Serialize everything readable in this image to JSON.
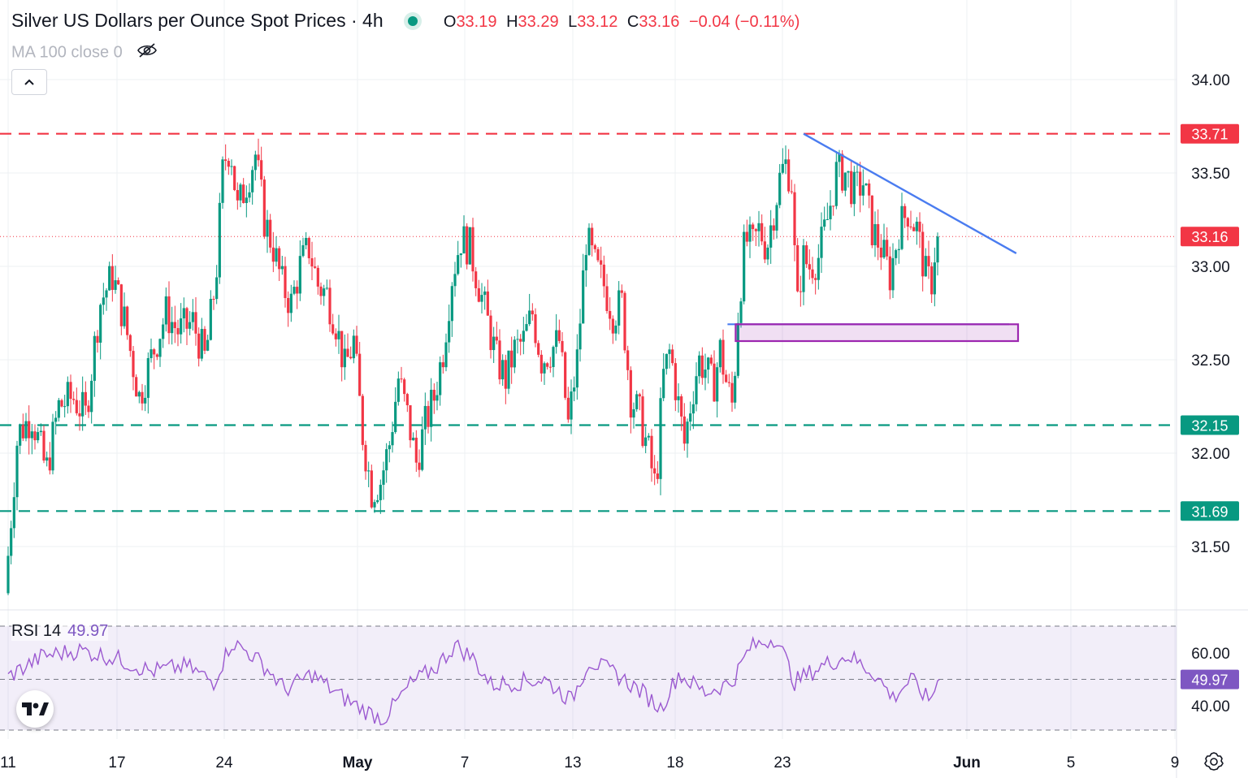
{
  "header": {
    "title": "Silver US Dollars per Ounce Spot Prices · 4h",
    "open_label": "O",
    "open": "33.19",
    "high_label": "H",
    "high": "33.29",
    "low_label": "L",
    "low": "33.12",
    "close_label": "C",
    "close": "33.16",
    "change": "−0.04 (−0.11%)"
  },
  "indicator": {
    "label": "MA 100 close 0",
    "icon": "eye-off-icon"
  },
  "rsi": {
    "label": "RSI 14",
    "value": "49.97"
  },
  "colors": {
    "up": "#089981",
    "down": "#f23645",
    "resistance": "#f23645",
    "support": "#089981",
    "trendline": "#4a7cf0",
    "zone": "#9c27b0",
    "rsi_line": "#9b59d0"
  },
  "chart_data": [
    {
      "type": "candlestick",
      "title": "Silver US Dollars per Ounce Spot Prices · 4h",
      "interval": "4h",
      "x_ticks": [
        "11",
        "17",
        "24",
        "May",
        "7",
        "13",
        "18",
        "23",
        "Jun",
        "5",
        "9"
      ],
      "y_ticks": [
        "31.50",
        "32.00",
        "32.50",
        "33.00",
        "33.50",
        "34.00"
      ],
      "ylim": [
        31.2,
        34.1
      ],
      "grid": true,
      "last_ohlc": {
        "open": 33.19,
        "high": 33.29,
        "low": 33.12,
        "close": 33.16
      },
      "current_price": 33.16,
      "price_path": [
        [
          11,
          31.25
        ],
        [
          11.7,
          32.1
        ],
        [
          12.5,
          32.2
        ],
        [
          13.3,
          31.9
        ],
        [
          14.0,
          32.25
        ],
        [
          14.8,
          32.3
        ],
        [
          15.5,
          32.2
        ],
        [
          16.3,
          32.8
        ],
        [
          17.0,
          32.95
        ],
        [
          17.7,
          32.7
        ],
        [
          18.5,
          32.3
        ],
        [
          19.3,
          32.55
        ],
        [
          20.0,
          32.75
        ],
        [
          20.7,
          32.65
        ],
        [
          21.5,
          32.7
        ],
        [
          22.2,
          32.5
        ],
        [
          22.8,
          32.95
        ],
        [
          23.2,
          33.55
        ],
        [
          23.6,
          33.65
        ],
        [
          24.0,
          33.3
        ],
        [
          24.5,
          33.45
        ],
        [
          25.0,
          33.6
        ],
        [
          25.5,
          33.25
        ],
        [
          26.0,
          33.1
        ],
        [
          26.5,
          32.9
        ],
        [
          27.0,
          32.8
        ],
        [
          27.5,
          33.0
        ],
        [
          28.0,
          33.1
        ],
        [
          28.5,
          32.9
        ],
        [
          29.0,
          32.85
        ],
        [
          29.5,
          32.7
        ],
        [
          30.0,
          32.45
        ],
        [
          30.5,
          32.6
        ],
        [
          31.0,
          32.1
        ],
        [
          31.5,
          31.8
        ],
        [
          32.0,
          31.85
        ],
        [
          32.5,
          32.05
        ],
        [
          33.0,
          32.4
        ],
        [
          33.5,
          32.2
        ],
        [
          34.0,
          31.95
        ],
        [
          34.5,
          32.15
        ],
        [
          35.0,
          32.3
        ],
        [
          35.5,
          32.55
        ],
        [
          36.0,
          32.95
        ],
        [
          36.5,
          33.15
        ],
        [
          37.0,
          33.1
        ],
        [
          37.5,
          32.9
        ],
        [
          38.0,
          32.7
        ],
        [
          38.5,
          32.5
        ],
        [
          39.0,
          32.4
        ],
        [
          39.5,
          32.55
        ],
        [
          40.0,
          32.6
        ],
        [
          40.5,
          32.75
        ],
        [
          41.0,
          32.5
        ],
        [
          41.5,
          32.55
        ],
        [
          42.0,
          32.6
        ],
        [
          42.5,
          32.15
        ],
        [
          43.0,
          32.5
        ],
        [
          43.5,
          33.15
        ],
        [
          44.0,
          33.0
        ],
        [
          44.5,
          32.9
        ],
        [
          45.0,
          32.75
        ],
        [
          45.5,
          32.8
        ],
        [
          46.0,
          32.3
        ],
        [
          46.5,
          32.2
        ],
        [
          47.0,
          32.0
        ],
        [
          47.4,
          31.8
        ],
        [
          47.8,
          32.4
        ],
        [
          48.2,
          32.55
        ],
        [
          48.6,
          32.3
        ],
        [
          49.0,
          32.05
        ],
        [
          49.4,
          32.3
        ],
        [
          49.8,
          32.5
        ],
        [
          50.2,
          32.45
        ],
        [
          50.6,
          32.35
        ],
        [
          51.0,
          32.55
        ],
        [
          51.4,
          32.35
        ],
        [
          51.7,
          32.25
        ],
        [
          52.0,
          32.75
        ],
        [
          52.4,
          33.15
        ],
        [
          52.8,
          33.1
        ],
        [
          53.2,
          33.2
        ],
        [
          53.6,
          33.1
        ],
        [
          54.0,
          33.3
        ],
        [
          54.4,
          33.5
        ],
        [
          54.7,
          33.55
        ],
        [
          55.0,
          33.45
        ],
        [
          55.3,
          32.75
        ],
        [
          55.6,
          33.05
        ],
        [
          56.0,
          33.0
        ],
        [
          56.5,
          33.05
        ],
        [
          57.0,
          33.25
        ],
        [
          57.5,
          33.5
        ],
        [
          58.0,
          33.5
        ],
        [
          58.5,
          33.4
        ],
        [
          59.0,
          33.45
        ],
        [
          59.5,
          33.2
        ],
        [
          60.0,
          33.1
        ],
        [
          60.5,
          32.95
        ],
        [
          61.0,
          33.2
        ],
        [
          61.5,
          33.3
        ],
        [
          62.0,
          33.2
        ],
        [
          62.5,
          32.95
        ],
        [
          62.8,
          32.9
        ],
        [
          63.1,
          33.16
        ]
      ],
      "rsi_path": [
        [
          11,
          51
        ],
        [
          13,
          59
        ],
        [
          15,
          61
        ],
        [
          17,
          58
        ],
        [
          19,
          53
        ],
        [
          21,
          55
        ],
        [
          22.5,
          49
        ],
        [
          23.5,
          64
        ],
        [
          24.5,
          60
        ],
        [
          25.5,
          54
        ],
        [
          26.5,
          46
        ],
        [
          28,
          52
        ],
        [
          29.5,
          44
        ],
        [
          31,
          38
        ],
        [
          32,
          35
        ],
        [
          33.5,
          48
        ],
        [
          35,
          55
        ],
        [
          36,
          63
        ],
        [
          37,
          58
        ],
        [
          38,
          48
        ],
        [
          39.5,
          49
        ],
        [
          41,
          50
        ],
        [
          42.5,
          42
        ],
        [
          43.5,
          57
        ],
        [
          45,
          52
        ],
        [
          46.5,
          45
        ],
        [
          47.5,
          39
        ],
        [
          48.5,
          52
        ],
        [
          50,
          45
        ],
        [
          51.5,
          49
        ],
        [
          52.5,
          62
        ],
        [
          54,
          66
        ],
        [
          55,
          49
        ],
        [
          56.5,
          55
        ],
        [
          58,
          59
        ],
        [
          59.5,
          52
        ],
        [
          60.5,
          43
        ],
        [
          61.5,
          50
        ],
        [
          62.5,
          42
        ],
        [
          63.1,
          49.97
        ]
      ],
      "rsi_ticks": [
        "40.00",
        "60.00"
      ],
      "rsi_value": 49.97,
      "levels": [
        {
          "label": "33.71",
          "value": 33.71,
          "style": "dashed",
          "role": "resistance"
        },
        {
          "label": "32.15",
          "value": 32.15,
          "style": "dashed",
          "role": "support"
        },
        {
          "label": "31.69",
          "value": 31.69,
          "style": "dashed",
          "role": "support"
        }
      ],
      "price_tag": {
        "label": "33.16",
        "value": 33.16
      },
      "rsi_tag": {
        "label": "49.97",
        "value": 49.97
      },
      "trendline": {
        "from": [
          55.5,
          33.71
        ],
        "to": [
          67.4,
          33.07
        ]
      },
      "support_zone": {
        "x_from": 51.7,
        "x_to": 67.5,
        "y_low": 32.6,
        "y_high": 32.69
      }
    }
  ]
}
